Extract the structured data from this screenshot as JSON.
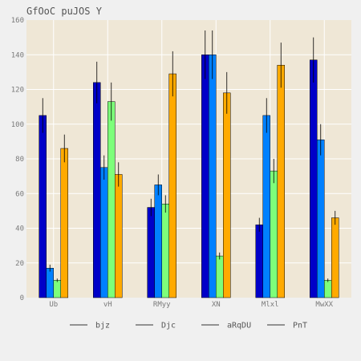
{
  "chart_data": {
    "type": "bar",
    "title": "GfOoC puJOS Y",
    "xlabel": "",
    "ylabel": "",
    "categories": [
      "Ub",
      "vH",
      "RMyy",
      "XN",
      "Mlxl",
      "MwXX"
    ],
    "ylim": [
      0,
      160
    ],
    "yticks": [
      0,
      20,
      40,
      60,
      80,
      100,
      120,
      140,
      160
    ],
    "grid": true,
    "legend_position": "bottom",
    "series": [
      {
        "name": "bjz",
        "color": "#0000c8",
        "values": [
          105,
          124,
          52,
          140,
          42,
          137
        ],
        "errors": [
          10,
          12,
          5,
          14,
          4,
          13
        ]
      },
      {
        "name": "Djc",
        "color": "#0080ff",
        "values": [
          17,
          75,
          65,
          140,
          105,
          91
        ],
        "errors": [
          2,
          7,
          6,
          14,
          10,
          9
        ]
      },
      {
        "name": "aRqDU",
        "color": "#7dff7a",
        "values": [
          10,
          113,
          54,
          24,
          73,
          10
        ],
        "errors": [
          1,
          11,
          5,
          2,
          7,
          1
        ]
      },
      {
        "name": "PnT",
        "color": "#ffaa00",
        "values": [
          86,
          71,
          129,
          118,
          134,
          46
        ],
        "errors": [
          8,
          7,
          13,
          12,
          13,
          4
        ]
      }
    ]
  }
}
